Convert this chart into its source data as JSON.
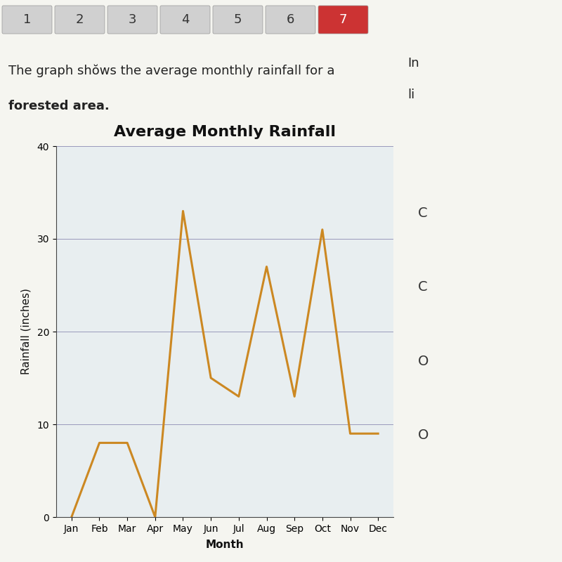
{
  "title": "Average Monthly Rainfall",
  "xlabel": "Month",
  "ylabel": "Rainfall (inches)",
  "months": [
    "Jan",
    "Feb",
    "Mar",
    "Apr",
    "May",
    "Jun",
    "Jul",
    "Aug",
    "Sep",
    "Oct",
    "Nov",
    "Dec"
  ],
  "values": [
    0,
    8,
    8,
    0,
    33,
    15,
    13,
    27,
    13,
    31,
    9,
    9
  ],
  "line_color": "#CC8822",
  "ylim": [
    0,
    40
  ],
  "yticks": [
    0,
    10,
    20,
    30,
    40
  ],
  "title_fontsize": 16,
  "label_fontsize": 11,
  "tick_fontsize": 10,
  "chart_bg_color": "#e8eef0",
  "page_bg_color": "#f5f5f0",
  "grid_color": "#9999bb",
  "title_fontweight": "bold",
  "tab_labels": [
    "1",
    "2",
    "3",
    "4",
    "5",
    "6",
    "7"
  ],
  "tab_active": 6,
  "desc_text_line1": "The graph shŏws the average monthly rainfall for a",
  "desc_text_line2": "forested area.",
  "tab_bg": "#d0d0d0",
  "tab_active_bg": "#cc3333",
  "tab_active_fg": "#ffffff",
  "tab_fg": "#333333"
}
